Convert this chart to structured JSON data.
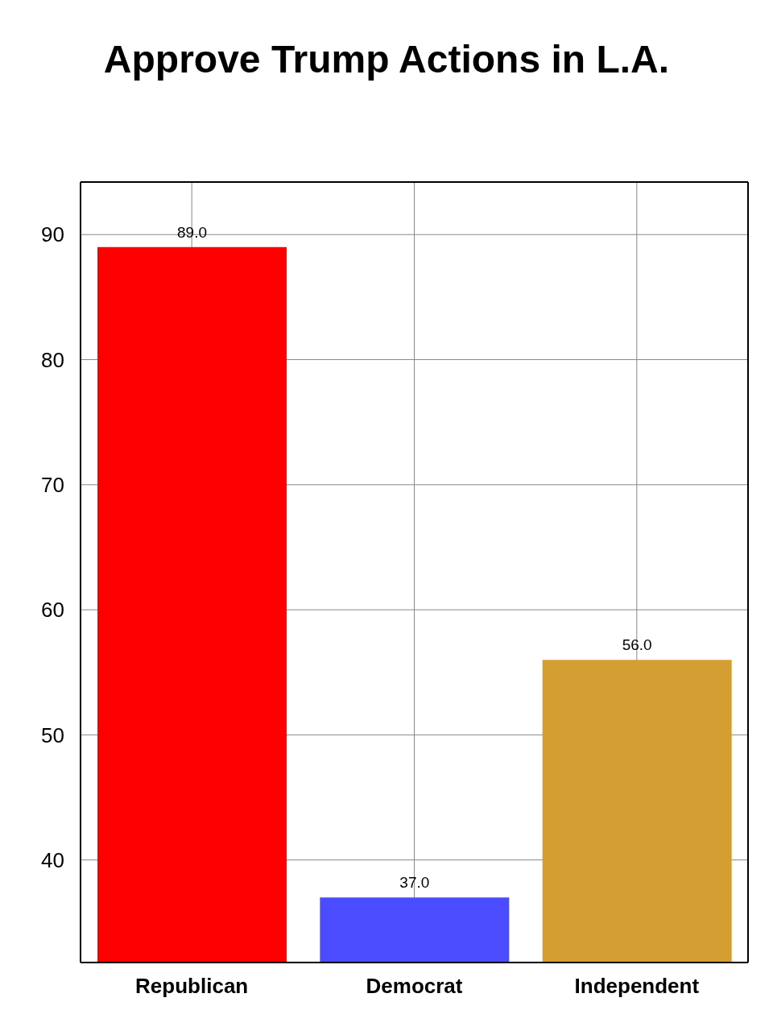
{
  "chart_data": {
    "type": "bar",
    "title": "Approve Trump Actions in L.A.",
    "categories": [
      "Republican",
      "Democrat",
      "Independent"
    ],
    "values": [
      89,
      37,
      56
    ],
    "colors": [
      "#ff0000",
      "#4b4bff",
      "#d49e32"
    ],
    "value_labels": [
      "89.0",
      "37.0",
      "56.0"
    ],
    "ylim": [
      31.8,
      94.2
    ],
    "yticks": [
      40,
      50,
      60,
      70,
      80,
      90
    ],
    "grid": true
  }
}
